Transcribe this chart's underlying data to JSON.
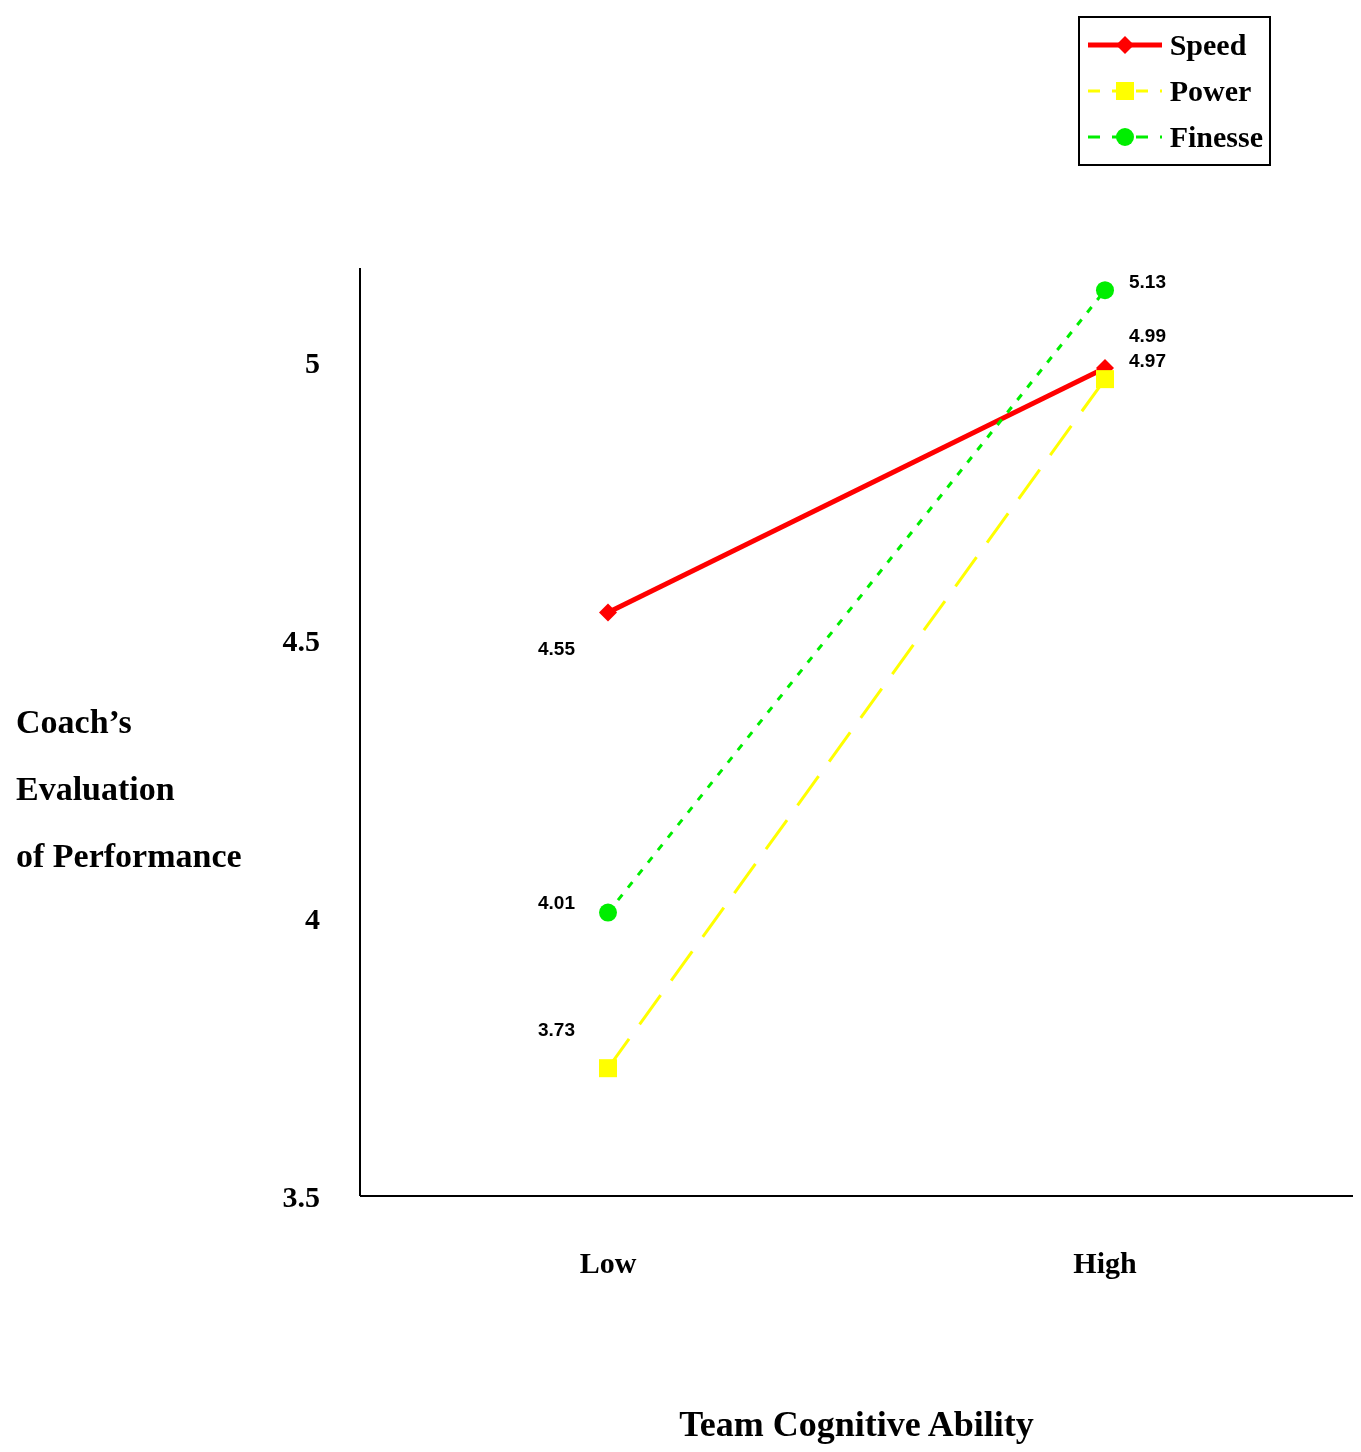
{
  "chart_data": {
    "type": "line",
    "xlabel": "Team Cognitive Ability",
    "ylabel": "Coach’s\nEvaluation\nof Performance",
    "categories": [
      "Low",
      "High"
    ],
    "series": [
      {
        "name": "Speed",
        "color": "#ff0000",
        "values": [
          4.55,
          4.99
        ],
        "marker": "diamond",
        "line_style": "solid"
      },
      {
        "name": "Power",
        "color": "#ffff00",
        "values": [
          3.73,
          4.97
        ],
        "marker": "square",
        "line_style": "dashed"
      },
      {
        "name": "Finesse",
        "color": "#00ee00",
        "values": [
          4.01,
          5.13
        ],
        "marker": "circle",
        "line_style": "dotted"
      }
    ],
    "ylim": [
      3.5,
      5.17
    ],
    "yticks": [
      3.5,
      4,
      4.5,
      5
    ],
    "grid": false,
    "legend": "top right",
    "data_labels": true
  }
}
